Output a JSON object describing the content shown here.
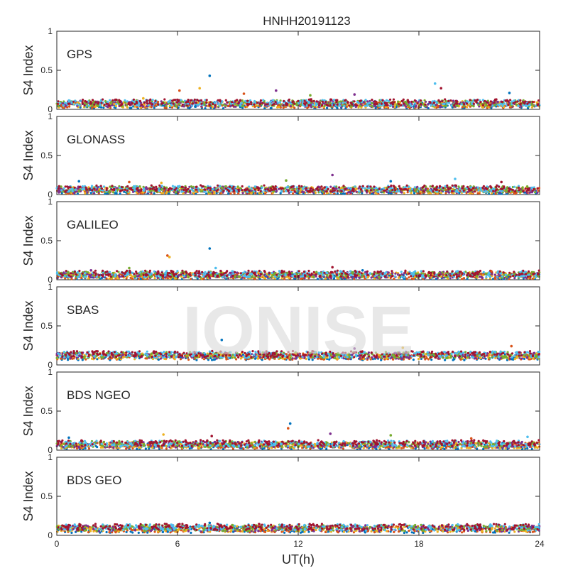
{
  "chart_data": {
    "type": "scatter",
    "title": "HNHH20191123",
    "xlabel": "UT(h)",
    "ylabel": "S4 Index",
    "xlim": [
      0,
      24
    ],
    "ylim": [
      0,
      1
    ],
    "xticks": [
      "0",
      "6",
      "12",
      "18",
      "24"
    ],
    "yticks": [
      "0",
      "0.5",
      "1"
    ],
    "grid": false,
    "watermark": "IONISE",
    "colors": [
      "#0072BD",
      "#D95319",
      "#EDB120",
      "#7E2F8E",
      "#77AC30",
      "#4DBEEE",
      "#A2142F"
    ],
    "panels": [
      {
        "name": "GPS",
        "baseline": 0.07,
        "spikes": [
          {
            "x": 7.6,
            "y": 0.43
          },
          {
            "x": 6.1,
            "y": 0.24
          },
          {
            "x": 7.1,
            "y": 0.27
          },
          {
            "x": 10.9,
            "y": 0.24
          },
          {
            "x": 12.6,
            "y": 0.18
          },
          {
            "x": 18.8,
            "y": 0.33
          },
          {
            "x": 19.1,
            "y": 0.27
          },
          {
            "x": 22.5,
            "y": 0.21
          },
          {
            "x": 9.3,
            "y": 0.2
          },
          {
            "x": 4.3,
            "y": 0.14
          },
          {
            "x": 14.8,
            "y": 0.19
          }
        ]
      },
      {
        "name": "GLONASS",
        "baseline": 0.06,
        "spikes": [
          {
            "x": 1.1,
            "y": 0.17
          },
          {
            "x": 3.6,
            "y": 0.16
          },
          {
            "x": 5.2,
            "y": 0.15
          },
          {
            "x": 13.7,
            "y": 0.25
          },
          {
            "x": 11.4,
            "y": 0.18
          },
          {
            "x": 19.8,
            "y": 0.2
          },
          {
            "x": 22.1,
            "y": 0.16
          },
          {
            "x": 16.6,
            "y": 0.17
          }
        ]
      },
      {
        "name": "GALILEO",
        "baseline": 0.06,
        "spikes": [
          {
            "x": 7.6,
            "y": 0.4
          },
          {
            "x": 5.5,
            "y": 0.31
          },
          {
            "x": 5.6,
            "y": 0.29
          },
          {
            "x": 1.7,
            "y": 0.12
          },
          {
            "x": 3.6,
            "y": 0.15
          },
          {
            "x": 7.9,
            "y": 0.15
          },
          {
            "x": 13.7,
            "y": 0.16
          },
          {
            "x": 15.2,
            "y": 0.12
          },
          {
            "x": 21.6,
            "y": 0.11
          }
        ]
      },
      {
        "name": "SBAS",
        "baseline": 0.12,
        "spikes": [
          {
            "x": 8.2,
            "y": 0.32
          },
          {
            "x": 22.6,
            "y": 0.24
          },
          {
            "x": 17.2,
            "y": 0.22
          },
          {
            "x": 14.8,
            "y": 0.21
          }
        ]
      },
      {
        "name": "BDS NGEO",
        "baseline": 0.07,
        "spikes": [
          {
            "x": 11.6,
            "y": 0.34
          },
          {
            "x": 11.5,
            "y": 0.28
          },
          {
            "x": 5.3,
            "y": 0.2
          },
          {
            "x": 13.6,
            "y": 0.21
          },
          {
            "x": 16.6,
            "y": 0.19
          },
          {
            "x": 23.4,
            "y": 0.17
          },
          {
            "x": 7.7,
            "y": 0.18
          },
          {
            "x": 0.6,
            "y": 0.16
          },
          {
            "x": 20.6,
            "y": 0.15
          }
        ]
      },
      {
        "name": "BDS GEO",
        "baseline": 0.09,
        "spikes": [
          {
            "x": 7.6,
            "y": 0.16
          }
        ]
      }
    ]
  }
}
